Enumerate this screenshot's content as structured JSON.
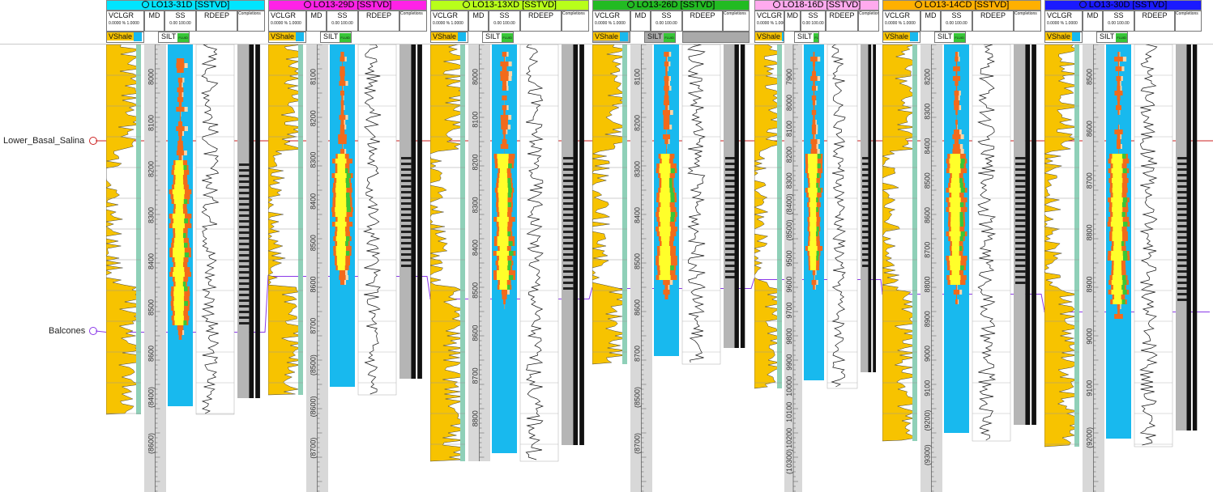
{
  "app": {
    "title": "Well section cross-section"
  },
  "colors": {
    "shale": "#f7c300",
    "shale_light": "#8fd0b8",
    "ss_blue": "#18b9ee",
    "sand_yellow": "#ffff2a",
    "orange": "#f26a1b",
    "peach": "#ffd6a8",
    "green": "#38c638",
    "marker_red": "#cc2222",
    "marker_purple": "#8a38e8",
    "depth_bg": "#d8d8d8",
    "completion_gray": "#b5b5b5"
  },
  "markers": [
    {
      "name": "Lower_Basal_Salina",
      "color": "#cc2222"
    },
    {
      "name": "Balcones",
      "color": "#8a38e8"
    }
  ],
  "panels": [
    {
      "title": "LO13-31D [SSTVD]",
      "color": "#00e5ff",
      "vclgr": "VCLGR",
      "vclgr_scale": "0.0000 % 1.0000",
      "md": "MD",
      "ss": "SS",
      "ss_scale": "0.00 100.00",
      "rdeep": "RDEEP",
      "completions": "Completions",
      "vshale": "VShale",
      "silt": "SILT",
      "fluid": "FLUID",
      "depths": [
        "8000",
        "8100",
        "8200",
        "8300",
        "8400",
        "8500",
        "8600",
        "(8400)",
        "(8600)"
      ],
      "basal_label": "Lower_Basal_Salina",
      "balcones_label": "Balcones"
    },
    {
      "title": "LO13-29D [SSTVD]",
      "color": "#ff22e6",
      "vclgr": "VCLGR",
      "vclgr_scale": "0.0000 % 1.0000",
      "md": "MD",
      "ss": "SS",
      "ss_scale": "0.00 100.00",
      "rdeep": "RDEEP",
      "completions": "Completions",
      "vshale": "VShale",
      "silt": "SILT",
      "fluid": "FLUID",
      "depths": [
        "8100",
        "8200",
        "8300",
        "8400",
        "8500",
        "8600",
        "8700",
        "(8500)",
        "(8600)",
        "(8700)"
      ],
      "basal_label": "Lower_Basal_Salina",
      "balcones_label": "Balcones"
    },
    {
      "title": "LO13-13XD [SSTVD]",
      "color": "#b8ff1a",
      "vclgr": "VCLGR",
      "vclgr_scale": "0.0000 % 1.0000",
      "md": "MD",
      "ss": "SS",
      "ss_scale": "0.00 100.00",
      "rdeep": "RDEEP",
      "completions": "Completions",
      "vshale": "VShale",
      "silt": "SILT",
      "fluid": "FLUID",
      "depths": [
        "8000",
        "8100",
        "8200",
        "8300",
        "8400",
        "8500",
        "8600",
        "8700",
        "8800"
      ],
      "basal_label": "Lower_Basal_Salina",
      "balcones_label": "Balcones"
    },
    {
      "title": "LO13-26D [SSTVD]",
      "color": "#22bb22",
      "vclgr": "VCLGR",
      "vclgr_scale": "0.0000 % 1.0000",
      "md": "MD",
      "ss": "SS",
      "ss_scale": "0.00 100.00",
      "rdeep": "RDEEP",
      "completions": "Completions",
      "vshale": "VShale",
      "silt": "SILT",
      "fluid": "FLUID",
      "depths": [
        "8100",
        "8200",
        "8300",
        "8400",
        "8500",
        "8600",
        "8700",
        "(8500)",
        "(8700)"
      ],
      "basal_label": "Lower_Basal_Salina",
      "balcones_label": "Balcones"
    },
    {
      "title": "LO18-16D [SSTVD]",
      "color": "#ffaaee",
      "vclgr": "VCLGR",
      "vclgr_scale": "0.0000 % 1.0000",
      "md": "MD",
      "ss": "SS",
      "ss_scale": "0.00 100.00",
      "rdeep": "RDEEP",
      "completions": "Completions",
      "vshale": "VShale",
      "silt": "SILT",
      "fluid": "FLUID",
      "depths": [
        "7900",
        "8000",
        "8100",
        "8200",
        "8300",
        "(8400)",
        "(8500)",
        "9500",
        "9600",
        "9700",
        "9800",
        "9900",
        "10000",
        "10100",
        "10200",
        "(10300)"
      ],
      "basal_label": "Lower_Basal_Salina",
      "balcones_label": "Balcones"
    },
    {
      "title": "LO13-14CD [SSTVD]",
      "color": "#ffb000",
      "vclgr": "VCLGR",
      "vclgr_scale": "0.0000 % 1.0000",
      "md": "MD",
      "ss": "SS",
      "ss_scale": "0.00 100.00",
      "rdeep": "RDEEP",
      "completions": "Completions",
      "vshale": "VShale",
      "silt": "SILT",
      "fluid": "FLUID",
      "depths": [
        "8200",
        "8300",
        "8400",
        "8500",
        "8600",
        "8700",
        "8800",
        "8900",
        "9000",
        "9100",
        "(9200)",
        "(9300)"
      ],
      "basal_label": "Lower_Basal_Salina",
      "balcones_label": "Balcones"
    },
    {
      "title": "LO13-30D [SSTVD]",
      "color": "#1a1aff",
      "vclgr": "VCLGR",
      "vclgr_scale": "0.0000 % 1.0000",
      "md": "MD",
      "ss": "SS",
      "ss_scale": "0.00 100.00",
      "rdeep": "RDEEP",
      "completions": "Completions",
      "vshale": "VShale",
      "silt": "SILT",
      "fluid": "FLUID",
      "depths": [
        "8500",
        "8600",
        "8700",
        "8800",
        "8900",
        "9000",
        "9100",
        "(9200)"
      ],
      "basal_label": "Lower_Basal_Salina",
      "balcones_label": "Balcones"
    }
  ]
}
